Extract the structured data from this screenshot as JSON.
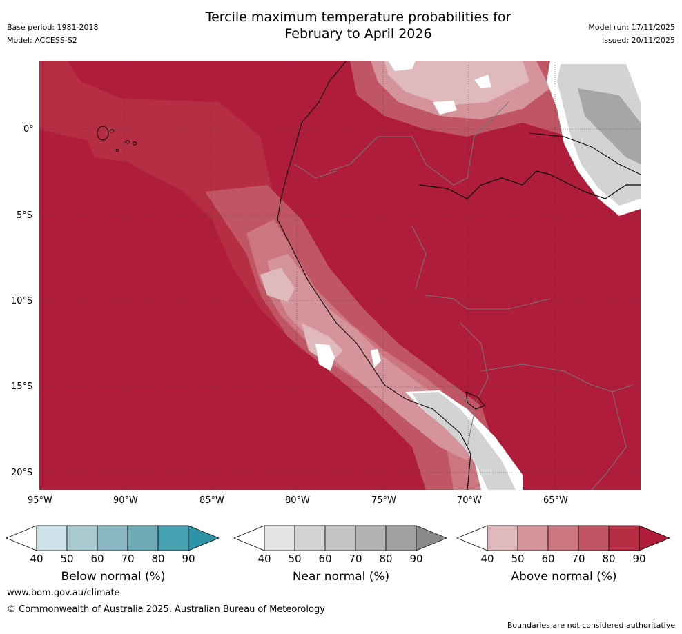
{
  "header": {
    "title_line1": "Tercile maximum temperature probabilities for",
    "title_line2": "February to April 2026",
    "base_period": "Base period: 1981-2018",
    "model": "Model: ACCESS-S2",
    "model_run": "Model run: 17/11/2025",
    "issued": "Issued: 20/11/2025"
  },
  "map": {
    "lat_labels": [
      "0°",
      "5°S",
      "10°S",
      "15°S",
      "20°S"
    ],
    "lon_labels": [
      "95°W",
      "90°W",
      "85°W",
      "80°W",
      "75°W",
      "70°W",
      "65°W"
    ]
  },
  "colorbars": [
    {
      "name": "below",
      "label": "Below normal (%)",
      "ticks": [
        "40",
        "50",
        "60",
        "70",
        "80",
        "90"
      ],
      "colors": [
        "#cde2e8",
        "#a9c9d0",
        "#8bb7c2",
        "#6eabb7",
        "#47a0b0",
        "#2f93a8"
      ]
    },
    {
      "name": "near",
      "label": "Near normal (%)",
      "ticks": [
        "40",
        "50",
        "60",
        "70",
        "80",
        "90"
      ],
      "colors": [
        "#e4e4e4",
        "#d3d3d3",
        "#c4c4c4",
        "#b3b3b3",
        "#a1a1a1",
        "#8a8a8a"
      ]
    },
    {
      "name": "above",
      "label": "Above normal (%)",
      "ticks": [
        "40",
        "50",
        "60",
        "70",
        "80",
        "90"
      ],
      "colors": [
        "#e0b9bd",
        "#d5939b",
        "#cc7680",
        "#c05664",
        "#b52e43",
        "#b01d3a"
      ]
    }
  ],
  "footer": {
    "url": "www.bom.gov.au/climate",
    "copyright": "© Commonwealth of Australia 2025, Australian Bureau of Meteorology",
    "disclaimer": "Boundaries are not considered authoritative"
  }
}
